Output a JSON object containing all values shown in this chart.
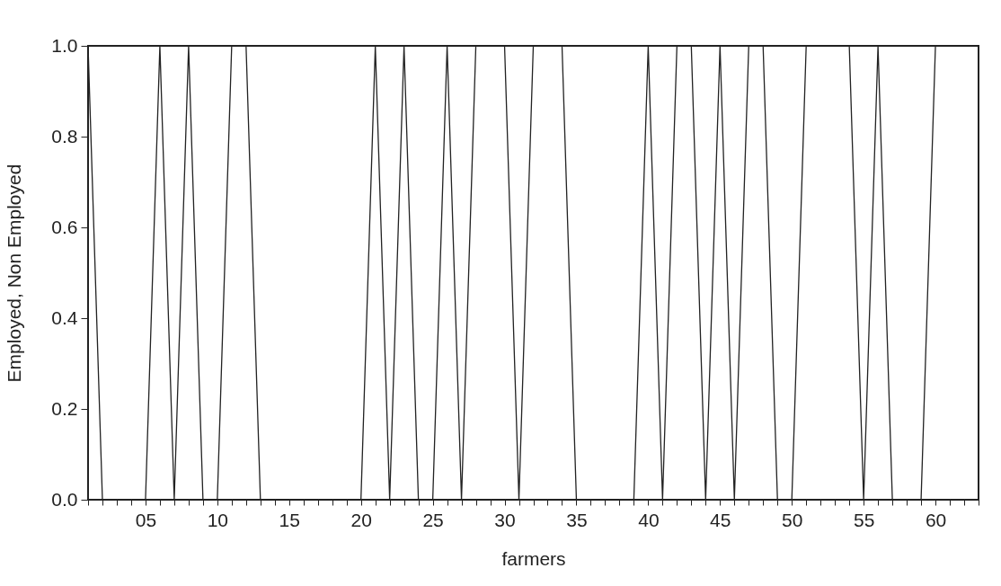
{
  "chart_data": {
    "type": "line",
    "xlabel": "farmers",
    "ylabel": "Employed, Non Employed",
    "x": [
      1,
      2,
      3,
      4,
      5,
      6,
      7,
      8,
      9,
      10,
      11,
      12,
      13,
      14,
      15,
      16,
      17,
      18,
      19,
      20,
      21,
      22,
      23,
      24,
      25,
      26,
      27,
      28,
      29,
      30,
      31,
      32,
      33,
      34,
      35,
      36,
      37,
      38,
      39,
      40,
      41,
      42,
      43,
      44,
      45,
      46,
      47,
      48,
      49,
      50,
      51,
      52,
      53,
      54,
      55,
      56,
      57,
      58,
      59,
      60,
      61,
      62,
      63
    ],
    "series": [
      {
        "color": "#222222",
        "values": [
          1,
          0,
          0,
          0,
          0,
          1,
          0,
          1,
          0,
          0,
          1,
          1,
          0,
          0,
          0,
          0,
          0,
          0,
          0,
          0,
          1,
          0,
          1,
          0,
          0,
          1,
          0,
          1,
          1,
          1,
          0,
          1,
          1,
          1,
          0,
          0,
          0,
          0,
          0,
          1,
          0,
          1,
          1,
          0,
          1,
          0,
          1,
          1,
          0,
          0,
          1,
          1,
          1,
          1,
          0,
          1,
          0,
          0,
          0,
          1,
          1,
          1,
          1
        ]
      }
    ],
    "xlim": [
      1,
      63
    ],
    "xticks": [
      {
        "value": 1,
        "label": null
      },
      {
        "value": 2,
        "label": null
      },
      {
        "value": 3,
        "label": null
      },
      {
        "value": 4,
        "label": null
      },
      {
        "value": 5,
        "label": "05"
      },
      {
        "value": 6,
        "label": null
      },
      {
        "value": 7,
        "label": null
      },
      {
        "value": 8,
        "label": null
      },
      {
        "value": 9,
        "label": null
      },
      10,
      {
        "value": 11,
        "label": null
      },
      {
        "value": 12,
        "label": null
      },
      {
        "value": 13,
        "label": null
      },
      {
        "value": 14,
        "label": null
      },
      15,
      {
        "value": 16,
        "label": null
      },
      {
        "value": 17,
        "label": null
      },
      {
        "value": 18,
        "label": null
      },
      {
        "value": 19,
        "label": null
      },
      20,
      {
        "value": 21,
        "label": null
      },
      {
        "value": 22,
        "label": null
      },
      {
        "value": 23,
        "label": null
      },
      {
        "value": 24,
        "label": null
      },
      25,
      {
        "value": 26,
        "label": null
      },
      {
        "value": 27,
        "label": null
      },
      {
        "value": 28,
        "label": null
      },
      {
        "value": 29,
        "label": null
      },
      30,
      {
        "value": 31,
        "label": null
      },
      {
        "value": 32,
        "label": null
      },
      {
        "value": 33,
        "label": null
      },
      {
        "value": 34,
        "label": null
      },
      35,
      {
        "value": 36,
        "label": null
      },
      {
        "value": 37,
        "label": null
      },
      {
        "value": 38,
        "label": null
      },
      {
        "value": 39,
        "label": null
      },
      40,
      {
        "value": 41,
        "label": null
      },
      {
        "value": 42,
        "label": null
      },
      {
        "value": 43,
        "label": null
      },
      {
        "value": 44,
        "label": null
      },
      45,
      {
        "value": 46,
        "label": null
      },
      {
        "value": 47,
        "label": null
      },
      {
        "value": 48,
        "label": null
      },
      {
        "value": 49,
        "label": null
      },
      50,
      {
        "value": 51,
        "label": null
      },
      {
        "value": 52,
        "label": null
      },
      {
        "value": 53,
        "label": null
      },
      {
        "value": 54,
        "label": null
      },
      55,
      {
        "value": 56,
        "label": null
      },
      {
        "value": 57,
        "label": null
      },
      {
        "value": 58,
        "label": null
      },
      {
        "value": 59,
        "label": null
      },
      60,
      {
        "value": 61,
        "label": null
      },
      {
        "value": 62,
        "label": null
      },
      {
        "value": 63,
        "label": null
      }
    ],
    "ylim": [
      0,
      1
    ],
    "yticks": [
      {
        "value": 0,
        "label": "0.0"
      },
      {
        "value": 0.2,
        "label": "0.2"
      },
      {
        "value": 0.4,
        "label": "0.4"
      },
      {
        "value": 0.6,
        "label": "0.6"
      },
      {
        "value": 0.8,
        "label": "0.8"
      },
      {
        "value": 1,
        "label": "1.0"
      }
    ],
    "grid": false,
    "marker": "none",
    "line_style": "solid"
  }
}
